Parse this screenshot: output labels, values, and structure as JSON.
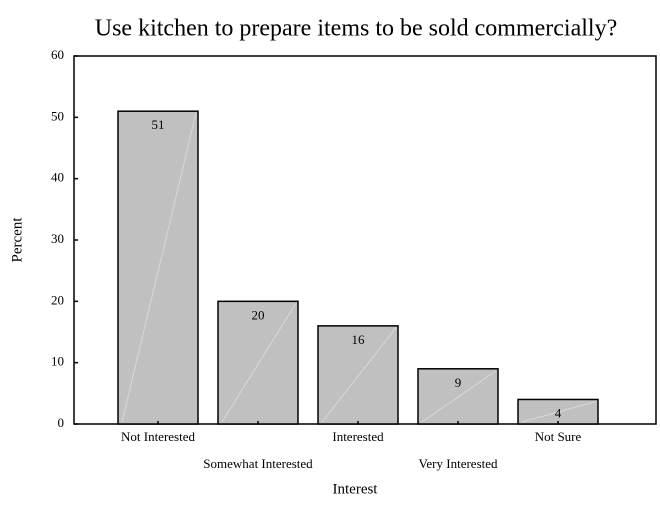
{
  "chart_data": {
    "type": "bar",
    "title": "Use kitchen to prepare items to be sold commercially?",
    "x_label": "Interest",
    "y_label": "Percent",
    "categories": [
      "Not Interested",
      "Somewhat Interested",
      "Interested",
      "Very Interested",
      "Not Sure"
    ],
    "values": [
      51,
      20,
      16,
      9,
      4
    ],
    "color": "#c0c0c0",
    "ylim": [
      0,
      60
    ],
    "yticks": [
      0,
      10,
      20,
      30,
      40,
      50,
      60
    ],
    "grid": false
  }
}
